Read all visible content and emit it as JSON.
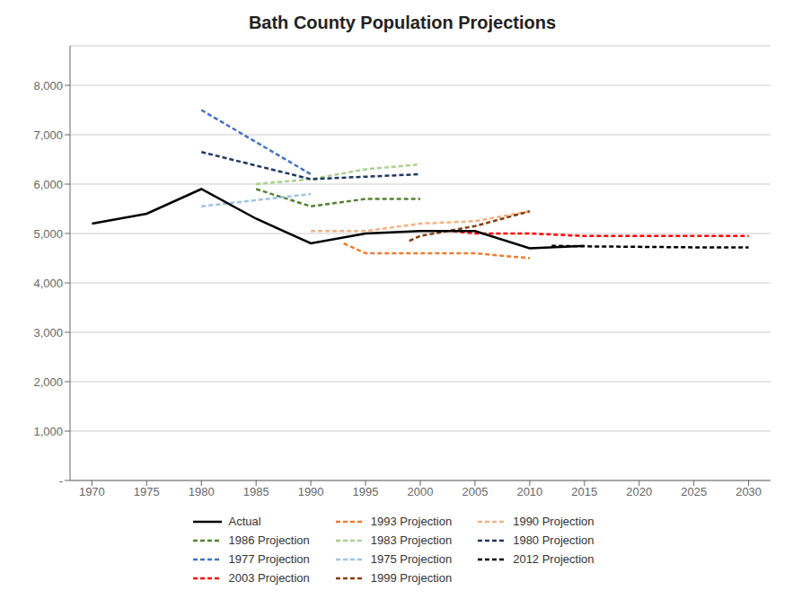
{
  "chart_data": {
    "type": "line",
    "title": "Bath County Population Projections",
    "xlim": [
      1968,
      2032
    ],
    "xticks": [
      1970,
      1975,
      1980,
      1985,
      1990,
      1995,
      2000,
      2005,
      2010,
      2015,
      2020,
      2025,
      2030
    ],
    "ylim": [
      0,
      8800
    ],
    "yticks": [
      {
        "value": 0,
        "label": "-"
      },
      {
        "value": 1000,
        "label": "1,000"
      },
      {
        "value": 2000,
        "label": "2,000"
      },
      {
        "value": 3000,
        "label": "3,000"
      },
      {
        "value": 4000,
        "label": "4,000"
      },
      {
        "value": 5000,
        "label": "5,000"
      },
      {
        "value": 6000,
        "label": "6,000"
      },
      {
        "value": 7000,
        "label": "7,000"
      },
      {
        "value": 8000,
        "label": "8,000"
      }
    ],
    "grid": true,
    "legend": "bottom",
    "series": [
      {
        "name": "Actual",
        "color": "#000000",
        "line_style": "solid",
        "x": [
          1970,
          1975,
          1980,
          1985,
          1990,
          1995,
          2000,
          2005,
          2010,
          2015
        ],
        "values": [
          5200,
          5400,
          5900,
          5300,
          4800,
          5000,
          5050,
          5050,
          4700,
          4750
        ]
      },
      {
        "name": "1993 Projection",
        "color": "#ED7D31",
        "line_style": "dashed",
        "x": [
          1993,
          1995,
          2000,
          2005,
          2010
        ],
        "values": [
          4800,
          4600,
          4600,
          4600,
          4500
        ]
      },
      {
        "name": "1990 Projection",
        "color": "#F4B183",
        "line_style": "dashed",
        "x": [
          1990,
          1995,
          2000,
          2005,
          2010
        ],
        "values": [
          5050,
          5050,
          5200,
          5250,
          5450
        ]
      },
      {
        "name": "1986 Projection",
        "color": "#548235",
        "line_style": "dashed",
        "x": [
          1985,
          1990,
          1995,
          2000
        ],
        "values": [
          5900,
          5550,
          5700,
          5700
        ]
      },
      {
        "name": "1983 Projection",
        "color": "#A9D18E",
        "line_style": "dashed",
        "x": [
          1985,
          1990,
          1995,
          2000
        ],
        "values": [
          6000,
          6100,
          6300,
          6400
        ]
      },
      {
        "name": "1980 Projection",
        "color": "#1F3864",
        "line_style": "dashed",
        "x": [
          1980,
          1990,
          2000
        ],
        "values": [
          6650,
          6100,
          6200
        ]
      },
      {
        "name": "1977 Projection",
        "color": "#4472C4",
        "line_style": "dashed",
        "x": [
          1980,
          1990
        ],
        "values": [
          7500,
          6200
        ]
      },
      {
        "name": "1975 Projection",
        "color": "#9DC3E6",
        "line_style": "dashed",
        "x": [
          1980,
          1990
        ],
        "values": [
          5550,
          5800
        ]
      },
      {
        "name": "2012 Projection",
        "color": "#000000",
        "line_style": "dashed",
        "x": [
          2012,
          2015,
          2020,
          2025,
          2030
        ],
        "values": [
          4750,
          4740,
          4730,
          4720,
          4720
        ]
      },
      {
        "name": "2003 Projection",
        "color": "#FF0000",
        "line_style": "dashed",
        "x": [
          2003,
          2005,
          2010,
          2015,
          2020,
          2025,
          2030
        ],
        "values": [
          5050,
          5000,
          5000,
          4950,
          4950,
          4950,
          4950
        ]
      },
      {
        "name": "1999 Projection",
        "color": "#843C0C",
        "line_style": "dashed",
        "x": [
          1999,
          2000,
          2005,
          2010
        ],
        "values": [
          4850,
          4950,
          5150,
          5450
        ]
      }
    ]
  }
}
